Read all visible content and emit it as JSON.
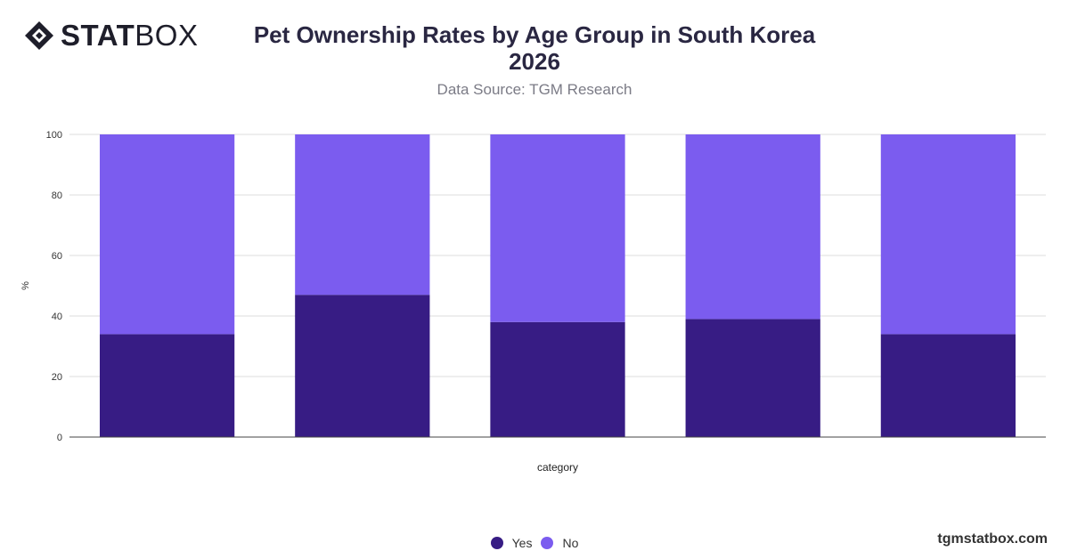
{
  "brand": {
    "logo_bold": "STAT",
    "logo_light": "BOX",
    "website": "tgmstatbox.com"
  },
  "chart_data": {
    "type": "bar",
    "stacked": true,
    "title_line1": "Pet Ownership Rates by Age Group in South Korea",
    "title_line2": "2026",
    "subtitle": "Data Source: TGM Research",
    "xlabel": "category",
    "ylabel": "%",
    "ylim": [
      0,
      100
    ],
    "yticks": [
      0,
      20,
      40,
      60,
      80,
      100
    ],
    "grid": true,
    "legend_position": "bottom",
    "categories": [
      "",
      "",
      "",
      "",
      ""
    ],
    "series": [
      {
        "name": "Yes",
        "color": "#371c84",
        "values": [
          34,
          47,
          38,
          39,
          34
        ]
      },
      {
        "name": "No",
        "color": "#7b5cef",
        "values": [
          66,
          53,
          62,
          61,
          66
        ]
      }
    ]
  },
  "colors": {
    "title": "#2a2742",
    "grid": "#dddddd",
    "axis": "#444444"
  }
}
